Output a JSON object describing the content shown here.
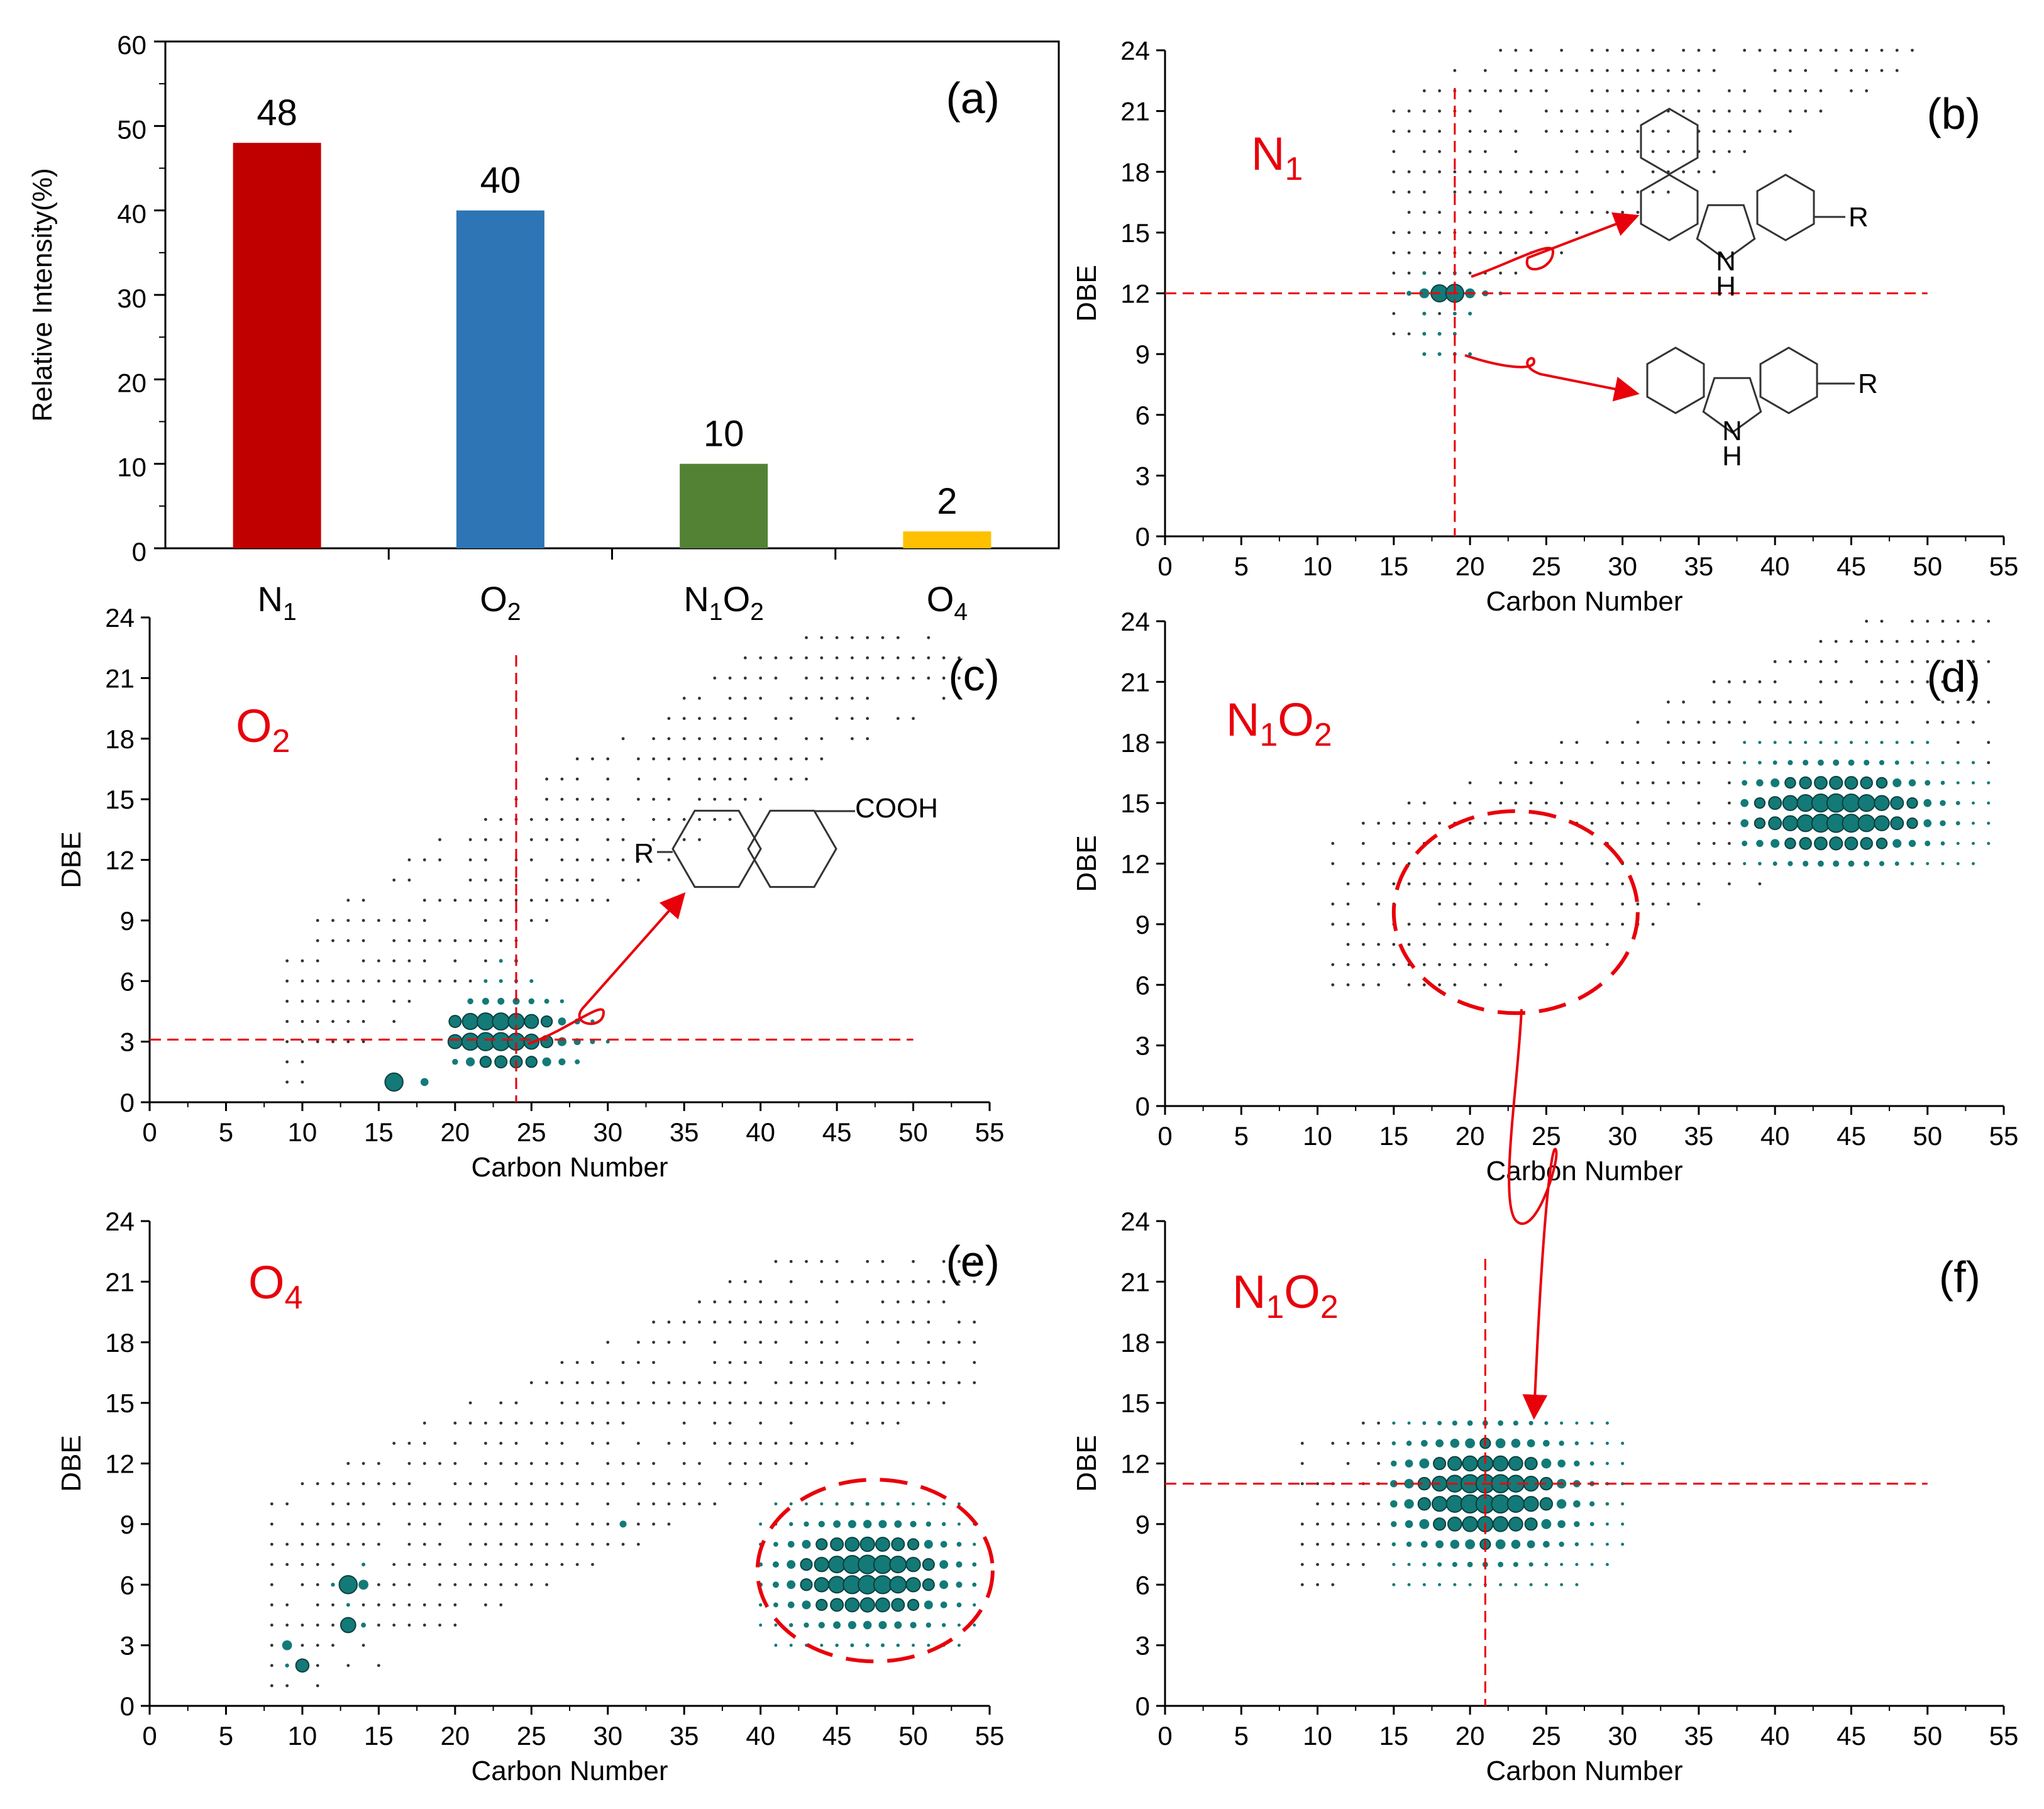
{
  "colors": {
    "bubble": "#137a78",
    "bubble_stroke": "#0b3f3e",
    "accent": "#e8000b",
    "axis": "#000000",
    "bar_colors": [
      "#c00000",
      "#2e75b6",
      "#548235",
      "#ffc000"
    ]
  },
  "chart_data": [
    {
      "id": "a",
      "type": "bar",
      "panel_label": "(a)",
      "categories": [
        "N1",
        "O2",
        "N1O2",
        "O4"
      ],
      "category_labels": [
        {
          "base": "N",
          "sub": "1",
          "rest": "",
          "sub2": ""
        },
        {
          "base": "O",
          "sub": "2",
          "rest": "",
          "sub2": ""
        },
        {
          "base": "N",
          "sub": "1",
          "rest": "O",
          "sub2": "2"
        },
        {
          "base": "O",
          "sub": "4",
          "rest": "",
          "sub2": ""
        }
      ],
      "values": [
        48,
        40,
        10,
        2
      ],
      "value_labels": [
        "48",
        "40",
        "10",
        "2"
      ],
      "ylabel": "Relative Intensity(%)",
      "xlabel": "",
      "ylim": [
        0,
        60
      ],
      "yticks": [
        0,
        10,
        20,
        30,
        40,
        50,
        60
      ]
    },
    {
      "id": "b",
      "type": "scatter",
      "panel_label": "(b)",
      "series_name": {
        "base": "N",
        "sub": "1",
        "rest": "",
        "sub2": ""
      },
      "xlabel": "Carbon Number",
      "ylabel": "DBE",
      "xlim": [
        0,
        55
      ],
      "ylim": [
        0,
        24
      ],
      "xticks": [
        0,
        5,
        10,
        15,
        20,
        25,
        30,
        35,
        40,
        45,
        50,
        55
      ],
      "yticks": [
        0,
        3,
        6,
        9,
        12,
        15,
        18,
        21,
        24
      ],
      "guide_lines": {
        "x": 19,
        "y": 12
      },
      "structures": [
        {
          "name": "benzocarbazole",
          "substituent": "R",
          "nh_label": "N",
          "h_label": "H"
        },
        {
          "name": "carbazole",
          "substituent": "R",
          "nh_label": "N",
          "h_label": "H"
        }
      ],
      "bubble_points": [
        {
          "x": 16,
          "y": 12,
          "s": 0.25
        },
        {
          "x": 17,
          "y": 12,
          "s": 0.5
        },
        {
          "x": 18,
          "y": 12,
          "s": 0.85
        },
        {
          "x": 19,
          "y": 12,
          "s": 0.9
        },
        {
          "x": 20,
          "y": 12,
          "s": 0.5
        },
        {
          "x": 21,
          "y": 12,
          "s": 0.3
        },
        {
          "x": 22,
          "y": 12,
          "s": 0.12
        },
        {
          "x": 17,
          "y": 11,
          "s": 0.12
        },
        {
          "x": 19,
          "y": 11,
          "s": 0.12
        },
        {
          "x": 20,
          "y": 11,
          "s": 0.1
        },
        {
          "x": 17,
          "y": 13,
          "s": 0.1
        },
        {
          "x": 19,
          "y": 13,
          "s": 0.1
        },
        {
          "x": 17,
          "y": 10,
          "s": 0.09
        },
        {
          "x": 18,
          "y": 10,
          "s": 0.1
        },
        {
          "x": 19,
          "y": 10,
          "s": 0.1
        },
        {
          "x": 17,
          "y": 9,
          "s": 0.1
        },
        {
          "x": 18,
          "y": 9,
          "s": 0.12
        },
        {
          "x": 19,
          "y": 9,
          "s": 0.1
        },
        {
          "x": 20,
          "y": 9,
          "s": 0.09
        }
      ],
      "dot_grid": {
        "xmin": 15,
        "xmax": 50,
        "dbe_min_offset": -2,
        "dbe_max_offset": 9,
        "dbe_ref": 12,
        "slope": 0.4,
        "ymin": 2,
        "ymax": 24
      }
    },
    {
      "id": "c",
      "type": "scatter",
      "panel_label": "(c)",
      "series_name": {
        "base": "O",
        "sub": "2",
        "rest": "",
        "sub2": ""
      },
      "xlabel": "Carbon Number",
      "ylabel": "DBE",
      "xlim": [
        0,
        55
      ],
      "ylim": [
        0,
        24
      ],
      "xticks": [
        0,
        5,
        10,
        15,
        20,
        25,
        30,
        35,
        40,
        45,
        50,
        55
      ],
      "yticks": [
        0,
        3,
        6,
        9,
        12,
        15,
        18,
        21,
        24
      ],
      "guide_lines": {
        "x": 24,
        "y": 3.1
      },
      "structures": [
        {
          "name": "decalin-carboxylic-acid",
          "substituent": "R",
          "group": "COOH"
        }
      ],
      "bubble_points": [
        {
          "x": 16,
          "y": 1,
          "s": 0.9
        },
        {
          "x": 18,
          "y": 1,
          "s": 0.4
        },
        {
          "x": 20,
          "y": 4,
          "s": 0.6
        },
        {
          "x": 21,
          "y": 4,
          "s": 0.8
        },
        {
          "x": 22,
          "y": 4,
          "s": 0.85
        },
        {
          "x": 23,
          "y": 4,
          "s": 0.85
        },
        {
          "x": 24,
          "y": 4,
          "s": 0.8
        },
        {
          "x": 25,
          "y": 4,
          "s": 0.7
        },
        {
          "x": 26,
          "y": 4,
          "s": 0.55
        },
        {
          "x": 27,
          "y": 4,
          "s": 0.4
        },
        {
          "x": 28,
          "y": 4,
          "s": 0.3
        },
        {
          "x": 29,
          "y": 4,
          "s": 0.2
        },
        {
          "x": 20,
          "y": 3,
          "s": 0.7
        },
        {
          "x": 21,
          "y": 3,
          "s": 0.85
        },
        {
          "x": 22,
          "y": 3,
          "s": 0.9
        },
        {
          "x": 23,
          "y": 3,
          "s": 0.9
        },
        {
          "x": 24,
          "y": 3,
          "s": 0.85
        },
        {
          "x": 25,
          "y": 3,
          "s": 0.75
        },
        {
          "x": 26,
          "y": 3,
          "s": 0.6
        },
        {
          "x": 27,
          "y": 3,
          "s": 0.45
        },
        {
          "x": 28,
          "y": 3,
          "s": 0.35
        },
        {
          "x": 29,
          "y": 3,
          "s": 0.25
        },
        {
          "x": 30,
          "y": 3,
          "s": 0.15
        },
        {
          "x": 20,
          "y": 2,
          "s": 0.3
        },
        {
          "x": 21,
          "y": 2,
          "s": 0.45
        },
        {
          "x": 22,
          "y": 2,
          "s": 0.55
        },
        {
          "x": 23,
          "y": 2,
          "s": 0.6
        },
        {
          "x": 24,
          "y": 2,
          "s": 0.6
        },
        {
          "x": 25,
          "y": 2,
          "s": 0.55
        },
        {
          "x": 26,
          "y": 2,
          "s": 0.45
        },
        {
          "x": 27,
          "y": 2,
          "s": 0.35
        },
        {
          "x": 28,
          "y": 2,
          "s": 0.25
        },
        {
          "x": 21,
          "y": 5,
          "s": 0.3
        },
        {
          "x": 22,
          "y": 5,
          "s": 0.35
        },
        {
          "x": 23,
          "y": 5,
          "s": 0.35
        },
        {
          "x": 24,
          "y": 5,
          "s": 0.35
        },
        {
          "x": 25,
          "y": 5,
          "s": 0.3
        },
        {
          "x": 26,
          "y": 5,
          "s": 0.25
        },
        {
          "x": 27,
          "y": 5,
          "s": 0.2
        },
        {
          "x": 22,
          "y": 6,
          "s": 0.15
        },
        {
          "x": 23,
          "y": 6,
          "s": 0.15
        },
        {
          "x": 24,
          "y": 6,
          "s": 0.15
        },
        {
          "x": 25,
          "y": 6,
          "s": 0.15
        },
        {
          "x": 23,
          "y": 7,
          "s": 0.1
        },
        {
          "x": 24,
          "y": 7,
          "s": 0.1
        }
      ],
      "dot_grid": {
        "xmin": 9,
        "xmax": 53,
        "dbe_min_offset": 0,
        "dbe_max_offset": 7,
        "dbe_ref": 1,
        "slope": 0.45,
        "ymin": 1,
        "ymax": 23
      }
    },
    {
      "id": "d",
      "type": "scatter",
      "panel_label": "(d)",
      "series_name": {
        "base": "N",
        "sub": "1",
        "rest": "O",
        "sub2": "2"
      },
      "xlabel": "Carbon Number",
      "ylabel": "DBE",
      "xlim": [
        0,
        55
      ],
      "ylim": [
        0,
        24
      ],
      "xticks": [
        0,
        5,
        10,
        15,
        20,
        25,
        30,
        35,
        40,
        45,
        50,
        55
      ],
      "yticks": [
        0,
        3,
        6,
        9,
        12,
        15,
        18,
        21,
        24
      ],
      "highlight_ellipse": {
        "cx": 23,
        "cy": 9.6,
        "rx": 8,
        "ry": 5
      },
      "bubble_points": [],
      "dense_cluster": {
        "xmin": 38,
        "xmax": 54,
        "center_x": 44,
        "center_y": 14.5,
        "ymin": 12,
        "ymax": 18
      },
      "dot_grid": {
        "xmin": 11,
        "xmax": 54,
        "dbe_min_offset": -4,
        "dbe_max_offset": 6,
        "dbe_ref": 7,
        "slope": 0.3,
        "ymin": 6,
        "ymax": 24
      }
    },
    {
      "id": "e",
      "type": "scatter",
      "panel_label": "(e)",
      "series_name": {
        "base": "O",
        "sub": "4",
        "rest": "",
        "sub2": ""
      },
      "xlabel": "Carbon Number",
      "ylabel": "DBE",
      "xlim": [
        0,
        55
      ],
      "ylim": [
        0,
        24
      ],
      "xticks": [
        0,
        5,
        10,
        15,
        20,
        25,
        30,
        35,
        40,
        45,
        50,
        55
      ],
      "yticks": [
        0,
        3,
        6,
        9,
        12,
        15,
        18,
        21,
        24
      ],
      "highlight_ellipse": {
        "cx": 47.5,
        "cy": 6.7,
        "rx": 7.7,
        "ry": 4.5
      },
      "bubble_points": [
        {
          "x": 13,
          "y": 6,
          "s": 0.9
        },
        {
          "x": 14,
          "y": 6,
          "s": 0.5
        },
        {
          "x": 12,
          "y": 6,
          "s": 0.2
        },
        {
          "x": 13,
          "y": 4,
          "s": 0.75
        },
        {
          "x": 14,
          "y": 4,
          "s": 0.25
        },
        {
          "x": 9,
          "y": 3,
          "s": 0.5
        },
        {
          "x": 10,
          "y": 2,
          "s": 0.65
        },
        {
          "x": 9,
          "y": 2,
          "s": 0.2
        },
        {
          "x": 31,
          "y": 9,
          "s": 0.35
        },
        {
          "x": 13,
          "y": 5,
          "s": 0.15
        },
        {
          "x": 14,
          "y": 7,
          "s": 0.1
        }
      ],
      "dense_cluster": {
        "xmin": 40,
        "xmax": 54,
        "center_x": 47,
        "center_y": 6.5,
        "ymin": 3,
        "ymax": 10
      },
      "dot_grid": {
        "xmin": 8,
        "xmax": 54,
        "dbe_min_offset": -1,
        "dbe_max_offset": 9,
        "dbe_ref": 1,
        "slope": 0.35,
        "ymin": 1,
        "ymax": 22
      }
    },
    {
      "id": "f",
      "type": "scatter",
      "panel_label": "(f)",
      "series_name": {
        "base": "N",
        "sub": "1",
        "rest": "O",
        "sub2": "2"
      },
      "xlabel": "Carbon Number",
      "ylabel": "DBE",
      "xlim": [
        0,
        55
      ],
      "ylim": [
        0,
        24
      ],
      "xticks": [
        0,
        5,
        10,
        15,
        20,
        25,
        30,
        35,
        40,
        45,
        50,
        55
      ],
      "yticks": [
        0,
        3,
        6,
        9,
        12,
        15,
        18,
        21,
        24
      ],
      "guide_lines": {
        "x": 21,
        "y": 11
      },
      "bubble_points": [],
      "dense_cluster": {
        "xmin": 15,
        "xmax": 30,
        "center_x": 21,
        "center_y": 10.5,
        "ymin": 6,
        "ymax": 14
      },
      "dot_grid": {
        "xmin": 9,
        "xmax": 30,
        "dbe_min_offset": -3,
        "dbe_max_offset": 4,
        "dbe_ref": 9,
        "slope": 0.2,
        "ymin": 5,
        "ymax": 14
      }
    }
  ]
}
